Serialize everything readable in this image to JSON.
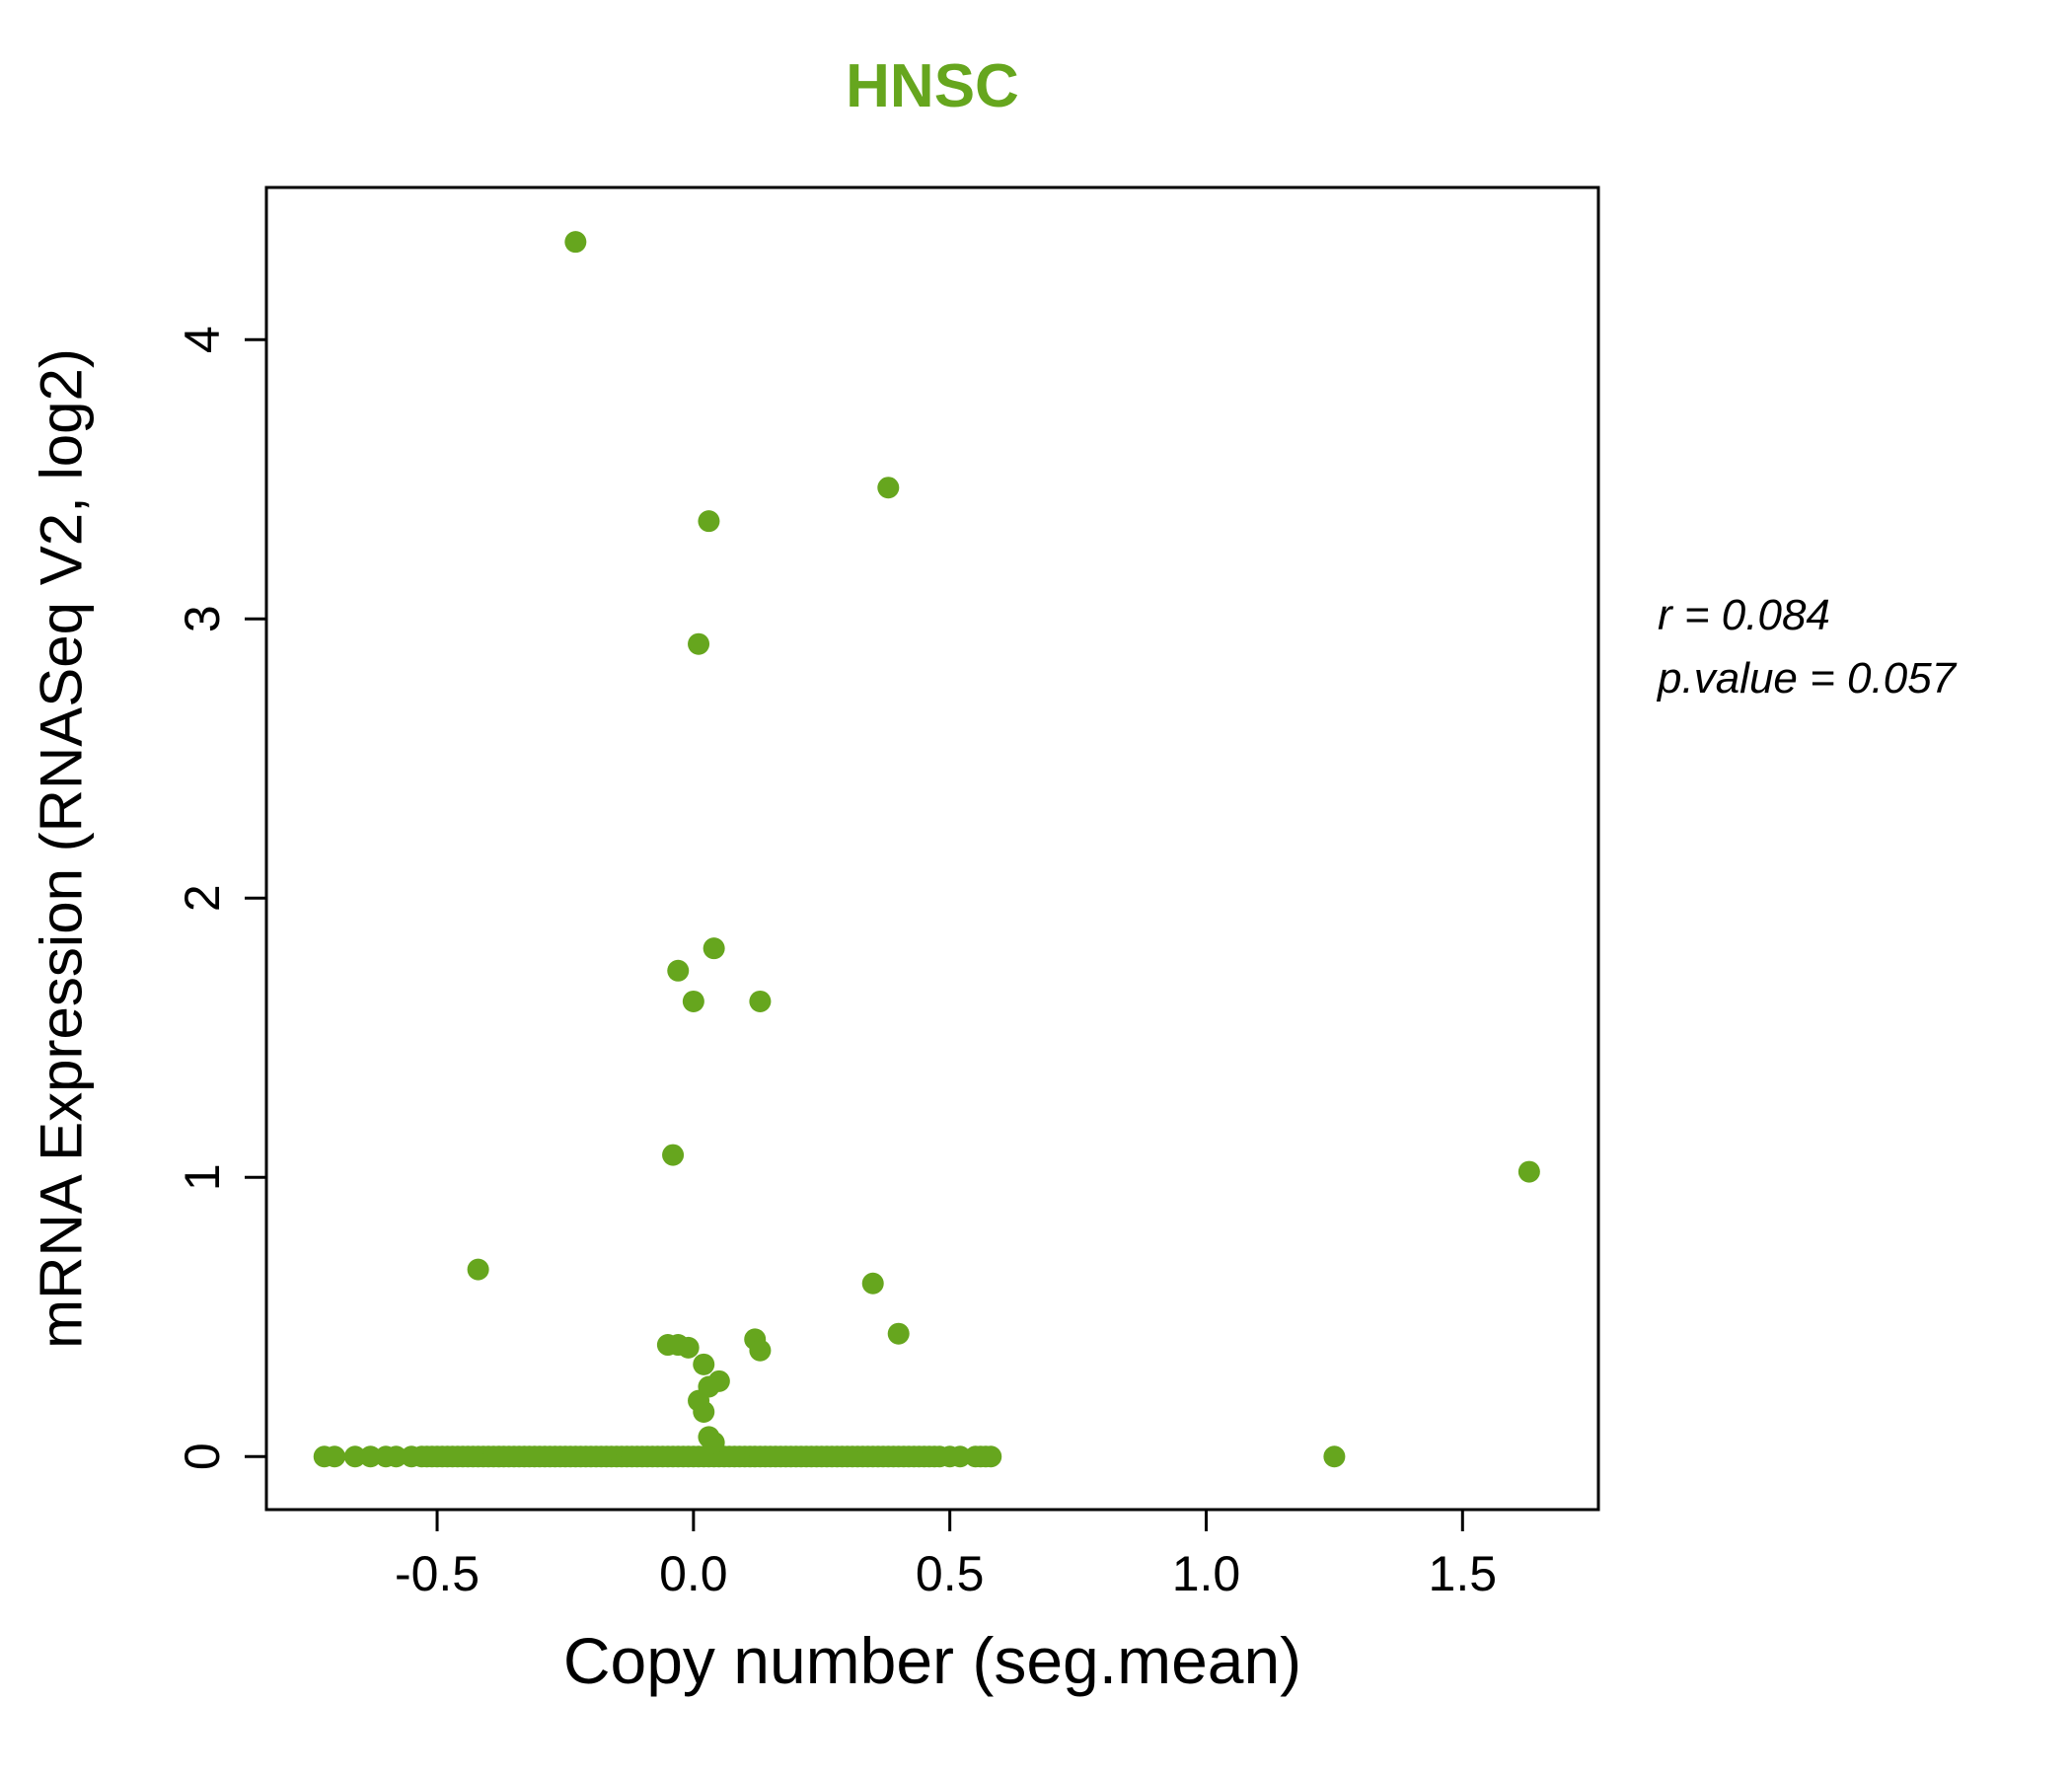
{
  "chart": {
    "title": "HNSC",
    "title_color": "#66a61e",
    "x_axis_label": "Copy number (seg.mean)",
    "y_axis_label": "mRNA Expression (RNASeq V2, log2)",
    "annotation": {
      "line1": "r = 0.084",
      "line2": "p.value = 0.057"
    }
  },
  "chart_data": {
    "type": "scatter",
    "title": "HNSC",
    "xlabel": "Copy number (seg.mean)",
    "ylabel": "mRNA Expression (RNASeq V2, log2)",
    "xlim": [
      -0.833,
      1.765
    ],
    "ylim": [
      -0.19,
      4.545
    ],
    "x_ticks": [
      -0.5,
      0.0,
      0.5,
      1.0,
      1.5
    ],
    "x_tick_labels": [
      "-0.5",
      "0.0",
      "0.5",
      "1.0",
      "1.5"
    ],
    "y_ticks": [
      0,
      1,
      2,
      3,
      4
    ],
    "y_tick_labels": [
      "0",
      "1",
      "2",
      "3",
      "4"
    ],
    "grid": false,
    "legend": "none",
    "point_color": "#66a61e",
    "correlation_r": 0.084,
    "p_value": 0.057,
    "points": [
      [
        -0.23,
        4.35
      ],
      [
        0.38,
        3.47
      ],
      [
        0.03,
        3.35
      ],
      [
        0.01,
        2.91
      ],
      [
        0.04,
        1.82
      ],
      [
        -0.03,
        1.74
      ],
      [
        0.0,
        1.63
      ],
      [
        0.13,
        1.63
      ],
      [
        -0.04,
        1.08
      ],
      [
        1.63,
        1.02
      ],
      [
        -0.42,
        0.67
      ],
      [
        0.35,
        0.62
      ],
      [
        0.4,
        0.44
      ],
      [
        0.12,
        0.42
      ],
      [
        0.13,
        0.38
      ],
      [
        -0.05,
        0.4
      ],
      [
        -0.03,
        0.4
      ],
      [
        -0.01,
        0.39
      ],
      [
        0.02,
        0.33
      ],
      [
        0.05,
        0.27
      ],
      [
        0.03,
        0.25
      ],
      [
        0.01,
        0.2
      ],
      [
        0.02,
        0.16
      ],
      [
        0.04,
        0.05
      ],
      [
        0.03,
        0.07
      ]
    ],
    "baseline_y": 0,
    "baseline_x": [
      -0.72,
      -0.7,
      -0.66,
      -0.63,
      -0.6,
      -0.58,
      -0.55,
      -0.53,
      -0.52,
      -0.51,
      -0.5,
      -0.49,
      -0.48,
      -0.47,
      -0.46,
      -0.45,
      -0.44,
      -0.43,
      -0.42,
      -0.41,
      -0.4,
      -0.39,
      -0.38,
      -0.37,
      -0.36,
      -0.35,
      -0.34,
      -0.33,
      -0.32,
      -0.31,
      -0.3,
      -0.29,
      -0.28,
      -0.27,
      -0.26,
      -0.25,
      -0.24,
      -0.23,
      -0.22,
      -0.21,
      -0.2,
      -0.19,
      -0.18,
      -0.17,
      -0.16,
      -0.15,
      -0.14,
      -0.13,
      -0.12,
      -0.11,
      -0.1,
      -0.09,
      -0.08,
      -0.07,
      -0.06,
      -0.05,
      -0.04,
      -0.03,
      -0.02,
      -0.01,
      0.0,
      0.01,
      0.02,
      0.03,
      0.04,
      0.05,
      0.06,
      0.07,
      0.08,
      0.09,
      0.1,
      0.11,
      0.12,
      0.13,
      0.14,
      0.15,
      0.16,
      0.17,
      0.18,
      0.19,
      0.2,
      0.21,
      0.22,
      0.23,
      0.24,
      0.25,
      0.26,
      0.27,
      0.28,
      0.29,
      0.3,
      0.31,
      0.32,
      0.33,
      0.34,
      0.35,
      0.36,
      0.37,
      0.38,
      0.39,
      0.4,
      0.41,
      0.42,
      0.43,
      0.44,
      0.45,
      0.46,
      0.47,
      0.48,
      0.5,
      0.52,
      0.55,
      0.56,
      0.57,
      0.58,
      1.25
    ]
  }
}
